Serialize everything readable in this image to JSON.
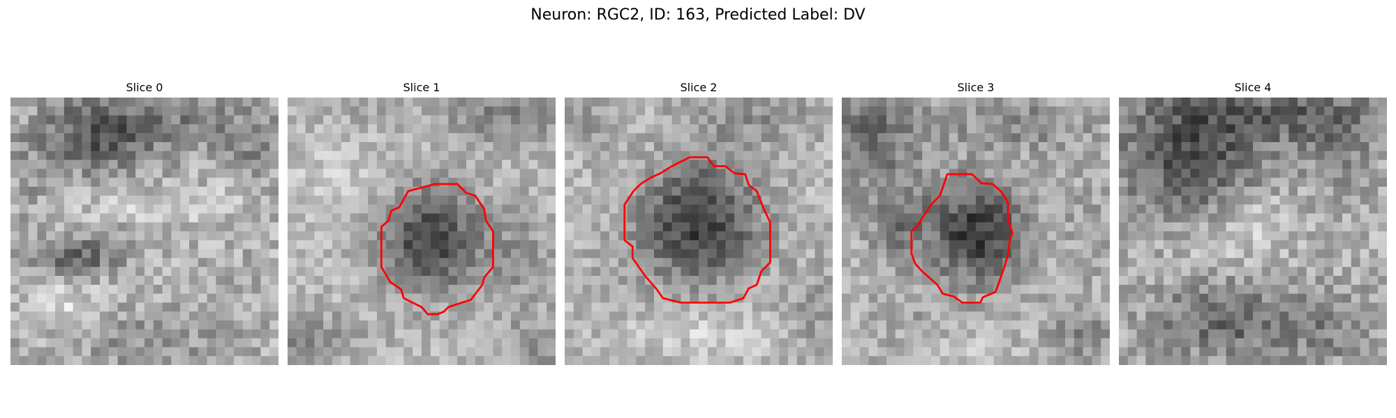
{
  "figure": {
    "title": "Neuron: RGC2, ID: 163, Predicted Label: DV"
  },
  "colors": {
    "contour": "#ff0000",
    "background": "#ffffff"
  },
  "slices": [
    {
      "title": "Slice 0",
      "has_contour": false
    },
    {
      "title": "Slice 1",
      "has_contour": true
    },
    {
      "title": "Slice 2",
      "has_contour": true
    },
    {
      "title": "Slice 3",
      "has_contour": true
    },
    {
      "title": "Slice 4",
      "has_contour": false
    }
  ]
}
